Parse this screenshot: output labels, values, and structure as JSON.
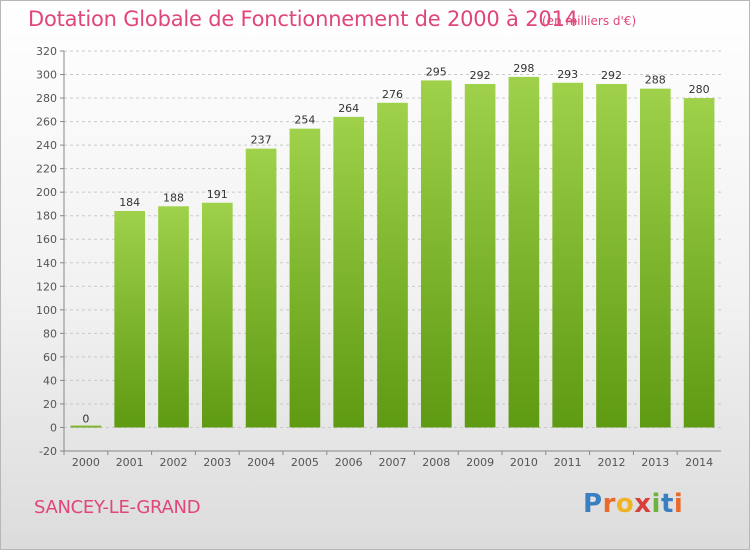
{
  "title": "Dotation Globale de Fonctionnement de 2000 à 2014",
  "unit_note": "(en milliers d'€)",
  "place_name": "SANCEY-LE-GRAND",
  "logo": {
    "letters": [
      "P",
      "r",
      "o",
      "x",
      "i",
      "t",
      "i"
    ],
    "colors": [
      "#3a7fc1",
      "#e86b2b",
      "#f0b323",
      "#d9403b",
      "#6db33f",
      "#3a7fc1",
      "#e86b2b"
    ]
  },
  "colors": {
    "bar_top": "#9fd14a",
    "bar_bottom": "#5e9a12",
    "title": "#e0457b",
    "grid": "#c9c9c9"
  },
  "chart_data": {
    "type": "bar",
    "categories": [
      "2000",
      "2001",
      "2002",
      "2003",
      "2004",
      "2005",
      "2006",
      "2007",
      "2008",
      "2009",
      "2010",
      "2011",
      "2012",
      "2013",
      "2014"
    ],
    "values": [
      0,
      184,
      188,
      191,
      237,
      254,
      264,
      276,
      295,
      292,
      298,
      293,
      292,
      288,
      280
    ],
    "ylim": [
      -20,
      320
    ],
    "yticks": [
      -20,
      0,
      20,
      40,
      60,
      80,
      100,
      120,
      140,
      160,
      180,
      200,
      220,
      240,
      260,
      280,
      300,
      320
    ],
    "grid": "horizontal dashed",
    "data_labels": true
  }
}
